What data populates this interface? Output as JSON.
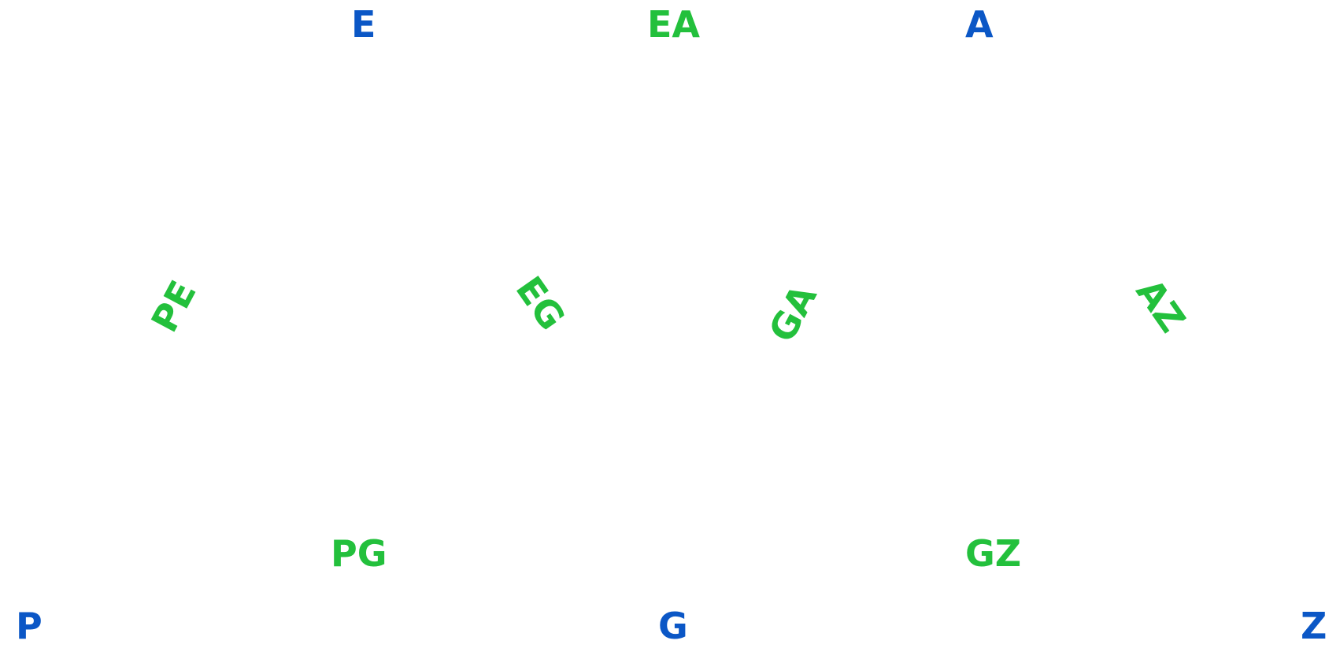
{
  "colors": {
    "vertex": "#0b57c6",
    "edge": "#23c03c"
  },
  "vertices": {
    "e": "E",
    "a": "A",
    "p": "P",
    "g": "G",
    "z": "Z"
  },
  "edges": {
    "ea": "EA",
    "pe": "PE",
    "eg": "EG",
    "ga": "GA",
    "az": "AZ",
    "pg": "PG",
    "gz": "GZ"
  }
}
